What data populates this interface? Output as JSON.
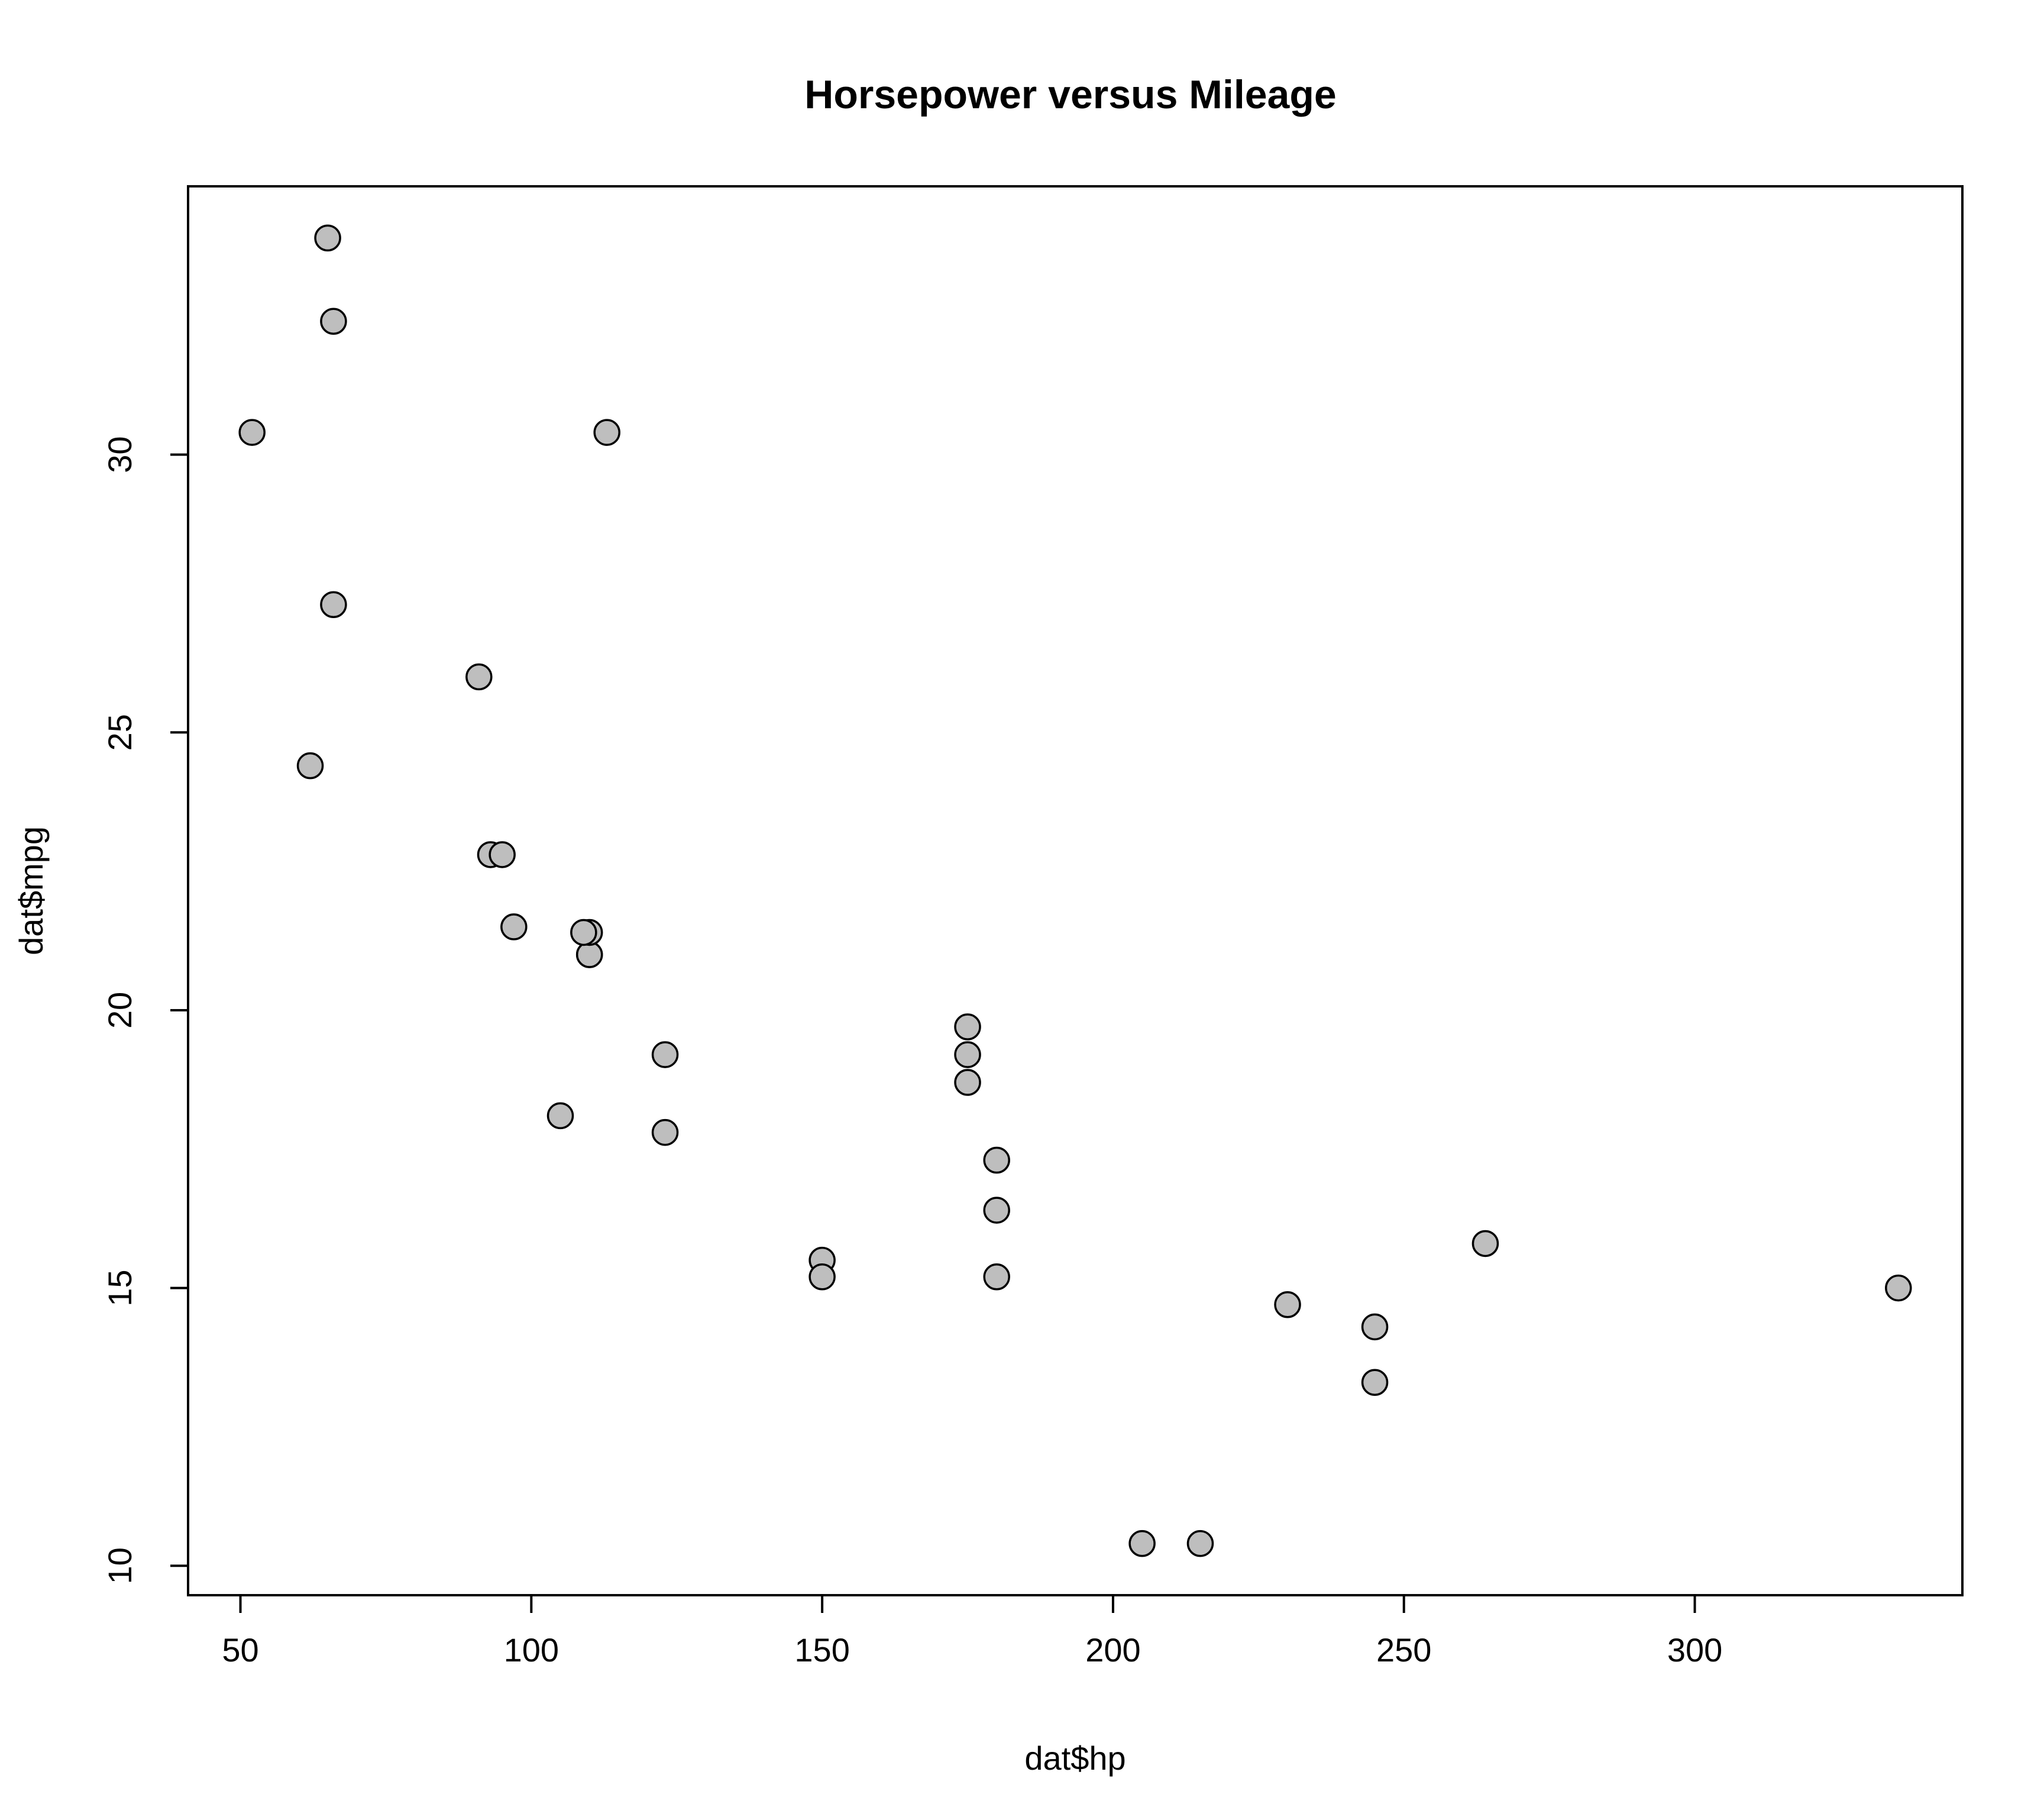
{
  "chart_data": {
    "type": "scatter",
    "title": "Horsepower versus Mileage",
    "xlabel": "dat$hp",
    "ylabel": "dat$mpg",
    "xlim": [
      41,
      346
    ],
    "ylim": [
      9.47,
      34.83
    ],
    "xticks": [
      50,
      100,
      150,
      200,
      250,
      300
    ],
    "yticks": [
      10,
      15,
      20,
      25,
      30
    ],
    "grid": false,
    "legend": "none",
    "point_fill": "#bebebe",
    "point_stroke": "#000000",
    "points": [
      {
        "x": 110,
        "y": 21.0
      },
      {
        "x": 110,
        "y": 21.0
      },
      {
        "x": 93,
        "y": 22.8
      },
      {
        "x": 110,
        "y": 21.4
      },
      {
        "x": 175,
        "y": 18.7
      },
      {
        "x": 105,
        "y": 18.1
      },
      {
        "x": 245,
        "y": 14.3
      },
      {
        "x": 62,
        "y": 24.4
      },
      {
        "x": 95,
        "y": 22.8
      },
      {
        "x": 123,
        "y": 19.2
      },
      {
        "x": 123,
        "y": 17.8
      },
      {
        "x": 180,
        "y": 16.4
      },
      {
        "x": 180,
        "y": 17.3
      },
      {
        "x": 180,
        "y": 15.2
      },
      {
        "x": 205,
        "y": 10.4
      },
      {
        "x": 215,
        "y": 10.4
      },
      {
        "x": 230,
        "y": 14.7
      },
      {
        "x": 66,
        "y": 32.4
      },
      {
        "x": 52,
        "y": 30.4
      },
      {
        "x": 65,
        "y": 33.9
      },
      {
        "x": 97,
        "y": 21.5
      },
      {
        "x": 150,
        "y": 15.5
      },
      {
        "x": 150,
        "y": 15.2
      },
      {
        "x": 245,
        "y": 13.3
      },
      {
        "x": 175,
        "y": 19.2
      },
      {
        "x": 66,
        "y": 27.3
      },
      {
        "x": 91,
        "y": 26.0
      },
      {
        "x": 113,
        "y": 30.4
      },
      {
        "x": 264,
        "y": 15.8
      },
      {
        "x": 175,
        "y": 19.7
      },
      {
        "x": 335,
        "y": 15.0
      },
      {
        "x": 109,
        "y": 21.4
      }
    ]
  }
}
